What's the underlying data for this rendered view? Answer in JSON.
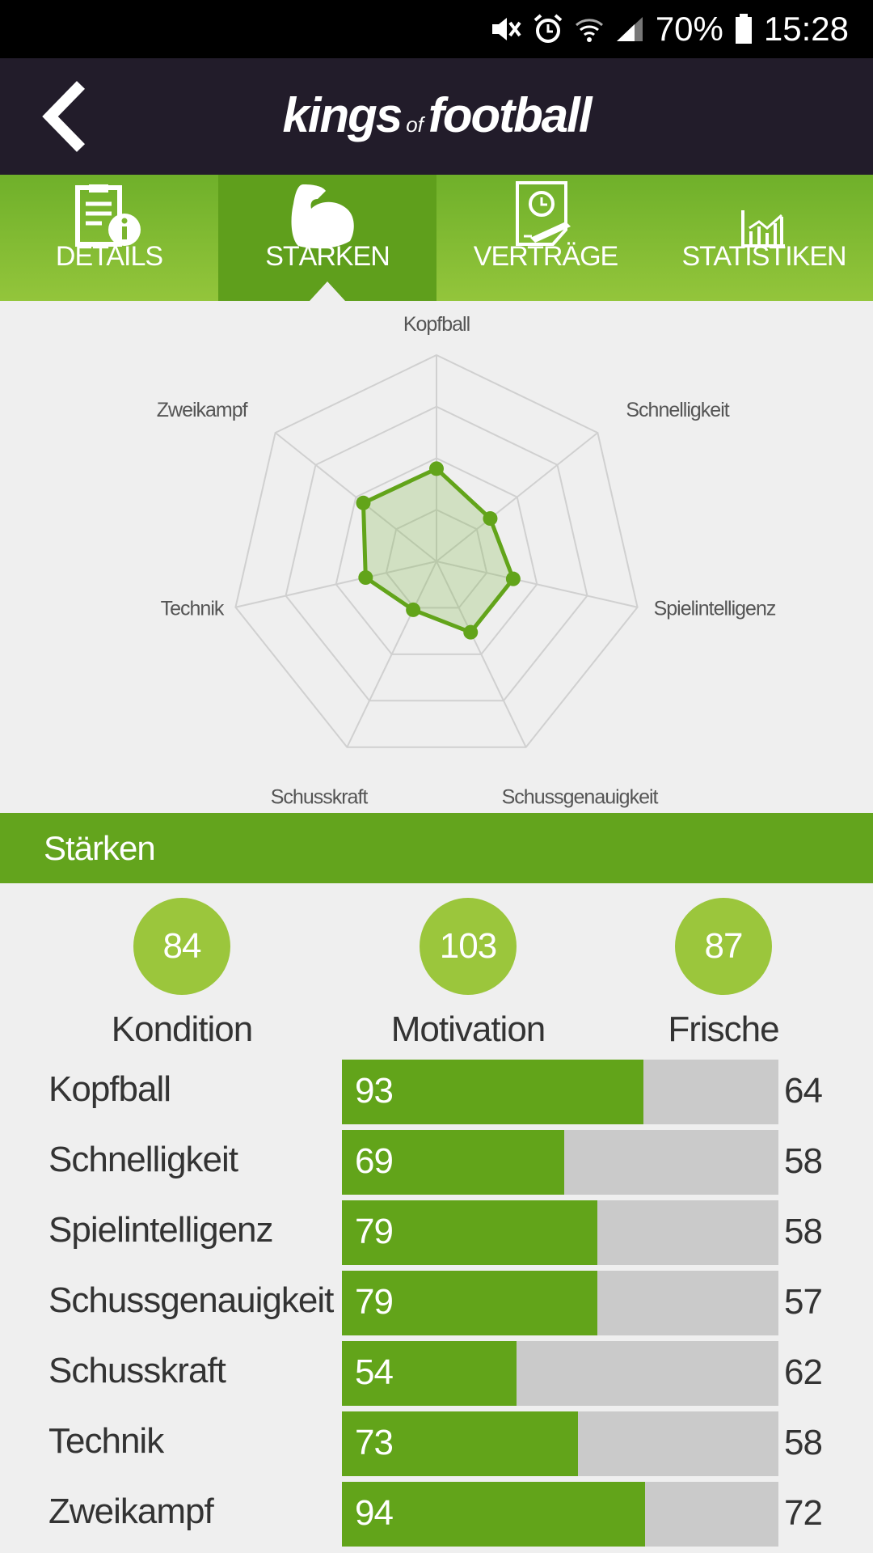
{
  "status_bar": {
    "battery": "70%",
    "time": "15:28"
  },
  "header": {
    "logo_word1": "kings",
    "logo_of": "of",
    "logo_word2": "football"
  },
  "tabs": [
    {
      "label": "DETAILS",
      "icon": "details-icon"
    },
    {
      "label": "STÄRKEN",
      "icon": "biceps-icon"
    },
    {
      "label": "VERTRÄGE",
      "icon": "contract-icon"
    },
    {
      "label": "STATISTIKEN",
      "icon": "chart-icon"
    }
  ],
  "radar": {
    "labels": [
      "Kopfball",
      "Schnelligkeit",
      "Spielintelligenz",
      "Schussgenauigkeit",
      "Schusskraft",
      "Technik",
      "Zweikampf"
    ],
    "values": [
      93,
      69,
      79,
      79,
      54,
      73,
      94
    ],
    "max": 100
  },
  "section": {
    "title": "Stärken"
  },
  "stats": [
    {
      "value": "84",
      "label": "Kondition"
    },
    {
      "value": "103",
      "label": "Motivation"
    },
    {
      "value": "87",
      "label": "Frische"
    }
  ],
  "skills": [
    {
      "name": "Kopfball",
      "value": "93",
      "fill": 0.69,
      "avg": "64"
    },
    {
      "name": "Schnelligkeit",
      "value": "69",
      "fill": 0.51,
      "avg": "58"
    },
    {
      "name": "Spielintelligenz",
      "value": "79",
      "fill": 0.585,
      "avg": "58"
    },
    {
      "name": "Schussgenauigkeit",
      "value": "79",
      "fill": 0.585,
      "avg": "57"
    },
    {
      "name": "Schusskraft",
      "value": "54",
      "fill": 0.4,
      "avg": "62"
    },
    {
      "name": "Technik",
      "value": "73",
      "fill": 0.54,
      "avg": "58"
    },
    {
      "name": "Zweikampf",
      "value": "94",
      "fill": 0.695,
      "avg": "72"
    }
  ],
  "colors": {
    "accent": "#63a41d",
    "circle": "#9bc63c",
    "header_bg": "#221c2a",
    "track": "#cacaca"
  }
}
